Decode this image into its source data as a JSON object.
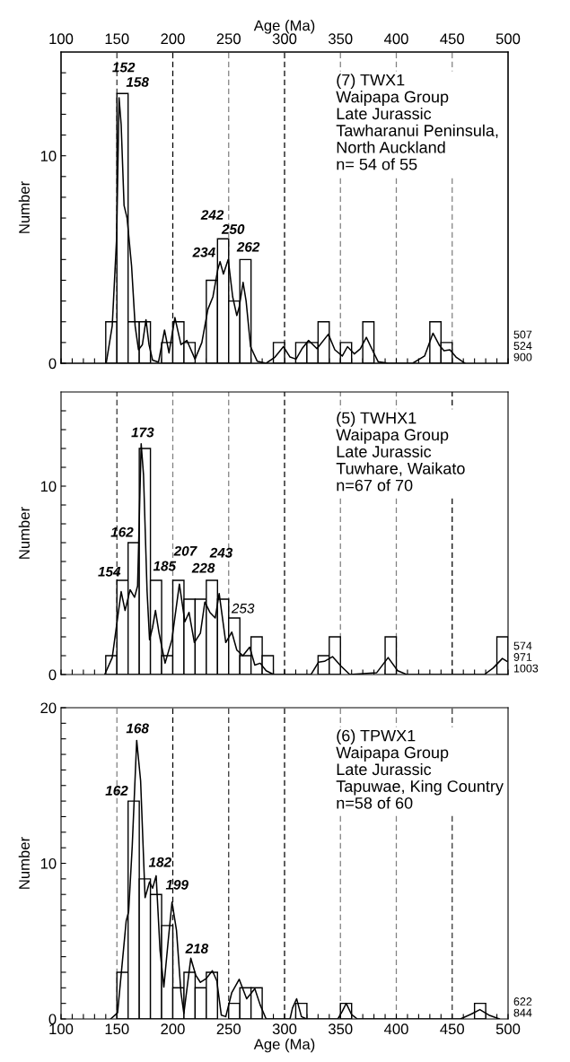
{
  "chart_data": [
    {
      "type": "histogram",
      "ylabel": "Number",
      "x2label": "Age (Ma)",
      "tick_labels": "y",
      "bins": [
        140,
        150,
        160,
        170,
        180,
        190,
        200,
        210,
        220,
        230,
        240,
        250,
        260,
        270,
        280,
        290,
        300,
        310,
        320,
        330,
        340,
        350,
        360,
        370,
        380,
        390,
        400,
        410,
        420,
        430,
        440,
        450
      ],
      "values": [
        2,
        13,
        2,
        2,
        0,
        1,
        2,
        1,
        0,
        4,
        6,
        3,
        5,
        0,
        0,
        1,
        0,
        1,
        1,
        2,
        0,
        1,
        0,
        2,
        0,
        0,
        0,
        0,
        0,
        2,
        1
      ],
      "color": "#ffffff",
      "series": [
        {
          "type": "line",
          "color": "#000000",
          "x": [
            140.4,
            145.8,
            149.8,
            151.9,
            153.8,
            156.4,
            159.1,
            163.1,
            166.3,
            169.3,
            172.8,
            176,
            178.7,
            181.9,
            187.2,
            192.6,
            196.6,
            201.9,
            207.3,
            212.6,
            219.9,
            226,
            231.4,
            235.9,
            240.2,
            242.3,
            245.3,
            249.6,
            253.6,
            257.3,
            259.4,
            262.9,
            265.6,
            269.6,
            275.5,
            283.5,
            291.5,
            299,
            304.9,
            310.3,
            315.6,
            321.5,
            329,
            339.2,
            345,
            351.7,
            356.3,
            362.4,
            367.8,
            373.2,
            378.5,
            383.8,
            393.2,
            414.6,
            425.3,
            432.8,
            438.7,
            442.7,
            448,
            453.4,
            461.4
          ],
          "values": [
            0,
            1.8,
            6.1,
            12.8,
            11.5,
            7.6,
            7,
            4.7,
            1.8,
            0.65,
            0.9,
            2.1,
            0.9,
            0.15,
            0.05,
            1.6,
            0.5,
            2.2,
            0.9,
            1.1,
            0.2,
            1,
            2.6,
            3.2,
            4.5,
            4.9,
            4.3,
            5,
            3.2,
            2.3,
            2.7,
            3.9,
            3,
            0.8,
            0.1,
            0,
            0.3,
            0.8,
            0.3,
            0.2,
            0.7,
            1.1,
            0.7,
            1.4,
            0.65,
            0.35,
            0.8,
            0.45,
            0.7,
            1.25,
            0.65,
            0.07,
            0,
            0,
            0.35,
            1.45,
            0.85,
            0.6,
            0.65,
            0.3,
            0
          ]
        }
      ],
      "xlim": [
        100,
        500
      ],
      "xticks": [
        {
          "value": 100,
          "label": null
        },
        {
          "value": 110,
          "label": null
        },
        {
          "value": 120,
          "label": null
        },
        {
          "value": 130,
          "label": null
        },
        {
          "value": 140,
          "label": null
        },
        {
          "value": 150,
          "label": null
        },
        {
          "value": 160,
          "label": null
        },
        {
          "value": 170,
          "label": null
        },
        {
          "value": 180,
          "label": null
        },
        {
          "value": 190,
          "label": null
        },
        {
          "value": 200,
          "label": null
        },
        {
          "value": 210,
          "label": null
        },
        {
          "value": 220,
          "label": null
        },
        {
          "value": 230,
          "label": null
        },
        {
          "value": 240,
          "label": null
        },
        {
          "value": 250,
          "label": null
        },
        {
          "value": 260,
          "label": null
        },
        {
          "value": 270,
          "label": null
        },
        {
          "value": 280,
          "label": null
        },
        {
          "value": 290,
          "label": null
        },
        {
          "value": 300,
          "label": null
        },
        {
          "value": 310,
          "label": null
        },
        {
          "value": 320,
          "label": null
        },
        {
          "value": 330,
          "label": null
        },
        {
          "value": 340,
          "label": null
        },
        {
          "value": 350,
          "label": null
        },
        {
          "value": 360,
          "label": null
        },
        {
          "value": 370,
          "label": null
        },
        {
          "value": 380,
          "label": null
        },
        {
          "value": 390,
          "label": null
        },
        {
          "value": 400,
          "label": null
        },
        {
          "value": 410,
          "label": null
        },
        {
          "value": 420,
          "label": null
        },
        {
          "value": 430,
          "label": null
        },
        {
          "value": 440,
          "label": null
        },
        {
          "value": 450,
          "label": null
        },
        {
          "value": 460,
          "label": null
        },
        {
          "value": 470,
          "label": null
        },
        {
          "value": 480,
          "label": null
        },
        {
          "value": 490,
          "label": null
        },
        {
          "value": 500,
          "label": null
        }
      ],
      "x2lim": [
        100,
        500
      ],
      "x2ticks": [
        100,
        150,
        200,
        250,
        300,
        350,
        400,
        450,
        500
      ],
      "ylim": [
        0,
        15
      ],
      "yticks": [
        0,
        {
          "value": 1,
          "label": null
        },
        {
          "value": 2,
          "label": null
        },
        {
          "value": 3,
          "label": null
        },
        {
          "value": 4,
          "label": null
        },
        {
          "value": 5,
          "label": null
        },
        {
          "value": 6,
          "label": null
        },
        {
          "value": 7,
          "label": null
        },
        {
          "value": 8,
          "label": null
        },
        {
          "value": 9,
          "label": null
        },
        10,
        {
          "value": 11,
          "label": null
        },
        {
          "value": 12,
          "label": null
        },
        {
          "value": 13,
          "label": null
        },
        {
          "value": 14,
          "label": null
        }
      ],
      "ref_lines": [
        {
          "axis": "x",
          "value": 150,
          "color": "#303030"
        },
        {
          "axis": "x",
          "value": 200,
          "color": "#000000"
        },
        {
          "axis": "x",
          "value": 250,
          "color": "#808080"
        },
        {
          "axis": "x",
          "value": 300,
          "color": "#000000"
        },
        {
          "axis": "x",
          "value": 350,
          "color": "#808080"
        },
        {
          "axis": "x",
          "value": 400,
          "color": "#808080"
        },
        {
          "axis": "x",
          "value": 450,
          "color": "#808080"
        }
      ],
      "annotations": [
        "(7) TWX1\nWaipapa Group\nLate Jurassic\nTawharanui Peninsula,\nNorth Auckland\nn= 54 of 55",
        "507\n524\n900",
        "152",
        "158",
        "242",
        "250",
        "234",
        "262"
      ]
    },
    {
      "type": "histogram",
      "ylabel": "Number",
      "tick_labels": "y",
      "bins": [
        140,
        150,
        160,
        170,
        180,
        190,
        200,
        210,
        220,
        230,
        240,
        250,
        260,
        270,
        280,
        290,
        300,
        310,
        320,
        330,
        340,
        350,
        360,
        370,
        380,
        390,
        400,
        410,
        420,
        430,
        440,
        450,
        460,
        470,
        480,
        490,
        500
      ],
      "values": [
        1,
        5,
        7,
        12,
        5,
        1,
        5,
        4,
        4,
        5,
        4,
        3,
        1,
        2,
        1,
        0,
        0,
        0,
        0,
        1,
        2,
        0,
        0,
        0,
        0,
        2,
        0,
        0,
        0,
        0,
        0,
        0,
        0,
        0,
        0,
        2
      ],
      "color": "#ffffff",
      "series": [
        {
          "type": "line",
          "color": "#000000",
          "x": [
            139.1,
            145.8,
            149.8,
            153.8,
            157.3,
            161.8,
            165.8,
            168.5,
            171.7,
            173.8,
            177,
            179.2,
            181.9,
            184.5,
            187.7,
            193.1,
            199.2,
            205.9,
            210.8,
            214.5,
            219.3,
            224.7,
            228.7,
            233.2,
            238,
            241.5,
            247.4,
            252.8,
            257.3,
            262.7,
            268.8,
            273.4,
            278.2,
            283.5,
            290.2,
            323.7,
            330.3,
            335.7,
            342.9,
            350.4,
            358.4,
            382.5,
            392.7,
            401.2,
            409.3,
            478.8,
            486.8,
            494.9,
            498.9
          ],
          "values": [
            0,
            0.9,
            2.65,
            4.4,
            3.4,
            4.5,
            4.1,
            4.7,
            12.25,
            10.6,
            4.4,
            1.85,
            2.5,
            3.4,
            2.2,
            0.6,
            1.85,
            4.8,
            2.8,
            3.3,
            1.7,
            2.2,
            3.85,
            3.3,
            3,
            4.3,
            1.7,
            2.25,
            1.3,
            1,
            1.45,
            0.5,
            0.6,
            0.2,
            0,
            0,
            0.65,
            0.7,
            0.95,
            0.45,
            0,
            0.1,
            0.9,
            0.2,
            0,
            0,
            0.35,
            0.85,
            0.7
          ]
        }
      ],
      "xlim": [
        100,
        500
      ],
      "xticks": [
        {
          "value": 100,
          "label": null
        },
        {
          "value": 110,
          "label": null
        },
        {
          "value": 120,
          "label": null
        },
        {
          "value": 130,
          "label": null
        },
        {
          "value": 140,
          "label": null
        },
        {
          "value": 150,
          "label": null
        },
        {
          "value": 160,
          "label": null
        },
        {
          "value": 170,
          "label": null
        },
        {
          "value": 180,
          "label": null
        },
        {
          "value": 190,
          "label": null
        },
        {
          "value": 200,
          "label": null
        },
        {
          "value": 210,
          "label": null
        },
        {
          "value": 220,
          "label": null
        },
        {
          "value": 230,
          "label": null
        },
        {
          "value": 240,
          "label": null
        },
        {
          "value": 250,
          "label": null
        },
        {
          "value": 260,
          "label": null
        },
        {
          "value": 270,
          "label": null
        },
        {
          "value": 280,
          "label": null
        },
        {
          "value": 290,
          "label": null
        },
        {
          "value": 300,
          "label": null
        },
        {
          "value": 310,
          "label": null
        },
        {
          "value": 320,
          "label": null
        },
        {
          "value": 330,
          "label": null
        },
        {
          "value": 340,
          "label": null
        },
        {
          "value": 350,
          "label": null
        },
        {
          "value": 360,
          "label": null
        },
        {
          "value": 370,
          "label": null
        },
        {
          "value": 380,
          "label": null
        },
        {
          "value": 390,
          "label": null
        },
        {
          "value": 400,
          "label": null
        },
        {
          "value": 410,
          "label": null
        },
        {
          "value": 420,
          "label": null
        },
        {
          "value": 430,
          "label": null
        },
        {
          "value": 440,
          "label": null
        },
        {
          "value": 450,
          "label": null
        },
        {
          "value": 460,
          "label": null
        },
        {
          "value": 470,
          "label": null
        },
        {
          "value": 480,
          "label": null
        },
        {
          "value": 490,
          "label": null
        },
        {
          "value": 500,
          "label": null
        }
      ],
      "ylim": [
        0,
        15
      ],
      "yticks": [
        0,
        {
          "value": 1,
          "label": null
        },
        {
          "value": 2,
          "label": null
        },
        {
          "value": 3,
          "label": null
        },
        {
          "value": 4,
          "label": null
        },
        {
          "value": 5,
          "label": null
        },
        {
          "value": 6,
          "label": null
        },
        {
          "value": 7,
          "label": null
        },
        {
          "value": 8,
          "label": null
        },
        {
          "value": 9,
          "label": null
        },
        10,
        {
          "value": 11,
          "label": null
        },
        {
          "value": 12,
          "label": null
        },
        {
          "value": 13,
          "label": null
        },
        {
          "value": 14,
          "label": null
        }
      ],
      "ref_lines": [
        {
          "axis": "x",
          "value": 150,
          "color": "#303030"
        },
        {
          "axis": "x",
          "value": 200,
          "color": "#808080"
        },
        {
          "axis": "x",
          "value": 250,
          "color": "#808080"
        },
        {
          "axis": "x",
          "value": 300,
          "color": "#000000"
        },
        {
          "axis": "x",
          "value": 350,
          "color": "#808080"
        },
        {
          "axis": "x",
          "value": 400,
          "color": "#808080"
        },
        {
          "axis": "x",
          "value": 450,
          "color": "#000000"
        }
      ],
      "annotations": [
        "(5) TWHX1\nWaipapa Group\nLate Jurassic\nTuwhare, Waikato\nn=67 of 70",
        "574\n971\n1003",
        "173",
        "162",
        "154",
        "185",
        "207",
        "228",
        "243",
        "253"
      ]
    },
    {
      "type": "histogram",
      "ylabel": "Number",
      "xlabel": "Age (Ma)",
      "bins": [
        150,
        160,
        170,
        180,
        190,
        200,
        210,
        220,
        230,
        240,
        250,
        260,
        270,
        280,
        290,
        300,
        310,
        320,
        330,
        340,
        350,
        360,
        370,
        380,
        390,
        400,
        410,
        420,
        430,
        440,
        450,
        460,
        470,
        480
      ],
      "values": [
        3,
        14,
        9,
        8,
        6,
        2,
        3,
        2,
        3,
        0,
        1,
        2,
        2,
        0,
        0,
        0,
        1,
        0,
        0,
        0,
        1,
        0,
        0,
        0,
        0,
        0,
        0,
        0,
        0,
        0,
        0,
        0,
        1
      ],
      "color": "#ffffff",
      "series": [
        {
          "type": "line",
          "color": "#000000",
          "x": [
            144.4,
            150.6,
            158.3,
            160.5,
            163.7,
            167.7,
            171.2,
            175.2,
            179.2,
            181.9,
            185.1,
            188.6,
            192,
            196,
            199.3,
            203.3,
            207.3,
            209.9,
            216.1,
            220.6,
            224.7,
            230,
            235.4,
            239.4,
            243.4,
            247.4,
            252.8,
            259.4,
            266.1,
            273.4,
            278.2,
            283.5,
            304.9,
            307.1,
            310.8,
            315.1,
            319.6,
            347.7,
            351.7,
            355.2,
            359.8,
            365.1,
            457.4,
            466.8,
            474.8,
            482.8,
            492.2
          ],
          "values": [
            0,
            0.4,
            6.3,
            6.9,
            11.1,
            17.9,
            15.3,
            7.8,
            8.8,
            8.4,
            9.2,
            4.4,
            2.05,
            5.1,
            7.5,
            5.7,
            1.7,
            0.35,
            3.9,
            2.8,
            2.35,
            2.6,
            3.1,
            2.45,
            0.25,
            0.15,
            1.7,
            2.55,
            1.3,
            1.95,
            0.9,
            0,
            0,
            0.7,
            1.3,
            0.15,
            0,
            0,
            0.5,
            1,
            0.3,
            0,
            0,
            0.3,
            0.6,
            0.25,
            0
          ]
        }
      ],
      "xlim": [
        100,
        500
      ],
      "xticks": [
        100,
        {
          "value": 110,
          "label": null
        },
        {
          "value": 120,
          "label": null
        },
        {
          "value": 130,
          "label": null
        },
        {
          "value": 140,
          "label": null
        },
        150,
        {
          "value": 160,
          "label": null
        },
        {
          "value": 170,
          "label": null
        },
        {
          "value": 180,
          "label": null
        },
        {
          "value": 190,
          "label": null
        },
        200,
        {
          "value": 210,
          "label": null
        },
        {
          "value": 220,
          "label": null
        },
        {
          "value": 230,
          "label": null
        },
        {
          "value": 240,
          "label": null
        },
        250,
        {
          "value": 260,
          "label": null
        },
        {
          "value": 270,
          "label": null
        },
        {
          "value": 280,
          "label": null
        },
        {
          "value": 290,
          "label": null
        },
        300,
        {
          "value": 310,
          "label": null
        },
        {
          "value": 320,
          "label": null
        },
        {
          "value": 330,
          "label": null
        },
        {
          "value": 340,
          "label": null
        },
        350,
        {
          "value": 360,
          "label": null
        },
        {
          "value": 370,
          "label": null
        },
        {
          "value": 380,
          "label": null
        },
        {
          "value": 390,
          "label": null
        },
        400,
        {
          "value": 410,
          "label": null
        },
        {
          "value": 420,
          "label": null
        },
        {
          "value": 430,
          "label": null
        },
        {
          "value": 440,
          "label": null
        },
        450,
        {
          "value": 460,
          "label": null
        },
        {
          "value": 470,
          "label": null
        },
        {
          "value": 480,
          "label": null
        },
        {
          "value": 490,
          "label": null
        },
        500
      ],
      "ylim": [
        0,
        20
      ],
      "yticks": [
        0,
        {
          "value": 1,
          "label": null
        },
        {
          "value": 2,
          "label": null
        },
        {
          "value": 3,
          "label": null
        },
        {
          "value": 4,
          "label": null
        },
        {
          "value": 5,
          "label": null
        },
        {
          "value": 6,
          "label": null
        },
        {
          "value": 7,
          "label": null
        },
        {
          "value": 8,
          "label": null
        },
        {
          "value": 9,
          "label": null
        },
        10,
        {
          "value": 11,
          "label": null
        },
        {
          "value": 12,
          "label": null
        },
        {
          "value": 13,
          "label": null
        },
        {
          "value": 14,
          "label": null
        },
        {
          "value": 15,
          "label": null
        },
        {
          "value": 16,
          "label": null
        },
        {
          "value": 17,
          "label": null
        },
        {
          "value": 18,
          "label": null
        },
        {
          "value": 19,
          "label": null
        },
        20
      ],
      "ref_lines": [
        {
          "axis": "x",
          "value": 150,
          "color": "#808080"
        },
        {
          "axis": "x",
          "value": 200,
          "color": "#000000"
        },
        {
          "axis": "x",
          "value": 250,
          "color": "#303030"
        },
        {
          "axis": "x",
          "value": 300,
          "color": "#000000"
        },
        {
          "axis": "x",
          "value": 350,
          "color": "#808080"
        },
        {
          "axis": "x",
          "value": 400,
          "color": "#808080"
        },
        {
          "axis": "x",
          "value": 450,
          "color": "#303030"
        }
      ],
      "annotations": [
        "(6) TPWX1\nWaipapa Group\nLate Jurassic\nTapuwae, King Country\nn=58 of 60",
        "622\n844",
        "168",
        "162",
        "182",
        "199",
        "218"
      ]
    }
  ]
}
